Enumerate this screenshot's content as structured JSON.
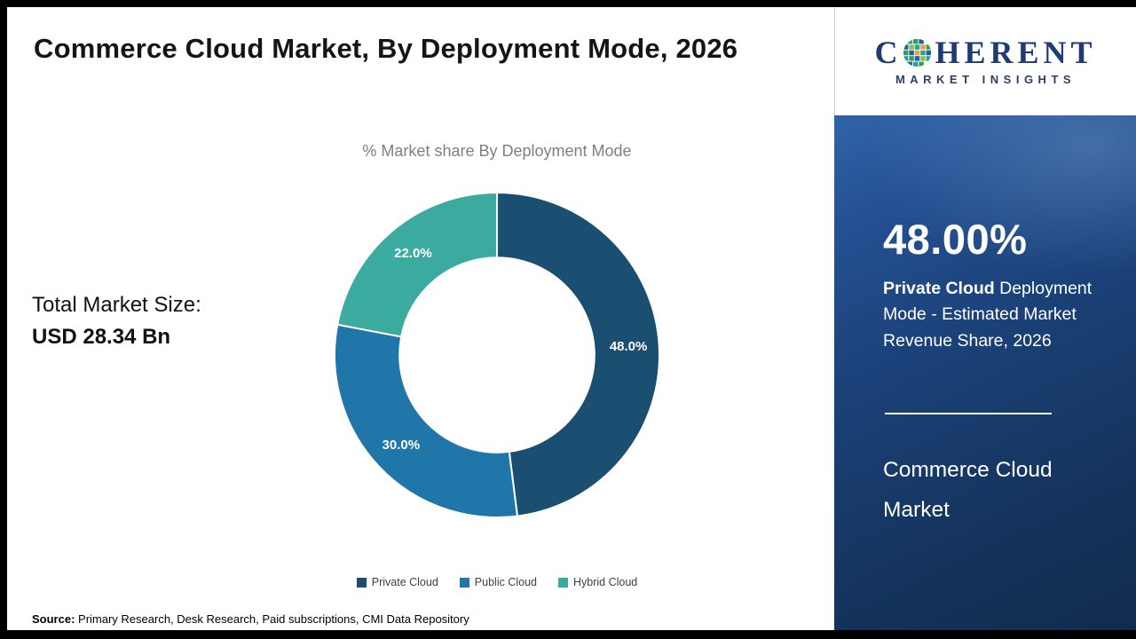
{
  "title": "Commerce Cloud Market, By Deployment Mode, 2026",
  "market_size": {
    "label": "Total Market Size:",
    "value": "USD 28.34 Bn"
  },
  "source": {
    "label": "Source:",
    "text": " Primary Research, Desk Research, Paid subscriptions, CMI Data Repository"
  },
  "logo": {
    "part1": "C",
    "part2": "HERENT",
    "subtitle": "MARKET INSIGHTS"
  },
  "highlight": {
    "value": "48.00%",
    "bold_text": "Private Cloud",
    "rest_text": " Deployment Mode - Estimated Market Revenue Share, 2026",
    "report_title": "Commerce Cloud Market"
  },
  "chart_data": {
    "type": "pie",
    "subtype": "donut",
    "title": "% Market share By Deployment Mode",
    "categories": [
      "Private Cloud",
      "Public Cloud",
      "Hybrid Cloud"
    ],
    "values": [
      48.0,
      30.0,
      22.0
    ],
    "labels": [
      "48.0%",
      "30.0%",
      "22.0%"
    ],
    "colors": [
      "#1b4f72",
      "#2076a8",
      "#3cab9f"
    ],
    "start_angle_deg": 0,
    "direction": "clockwise",
    "inner_radius_ratio": 0.6,
    "legend_position": "bottom",
    "total_market_size": "USD 28.34 Bn"
  }
}
